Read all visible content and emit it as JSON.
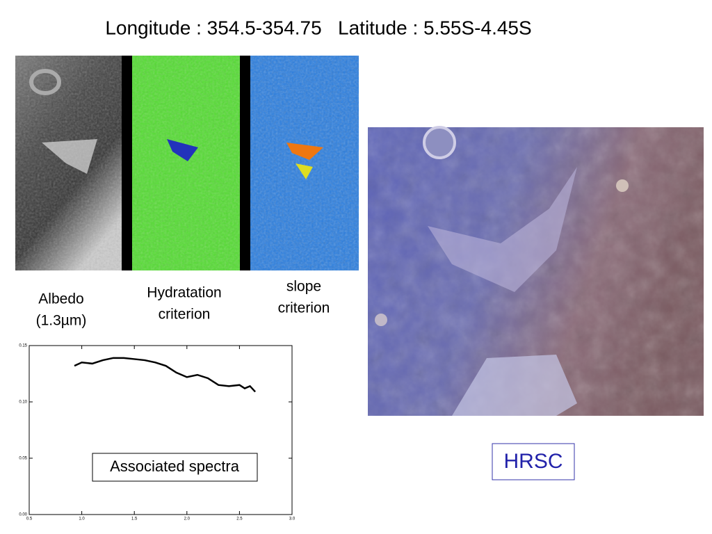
{
  "title": "Longitude : 354.5-354.75   Latitude : 5.55S-4.45S",
  "captions": {
    "albedo": [
      "Albedo",
      "(1.3µm)"
    ],
    "hydration": [
      "Hydratation",
      "criterion"
    ],
    "slope": [
      "slope",
      "criterion"
    ]
  },
  "spectra_label": "Associated spectra",
  "hrsc_label": "HRSC",
  "chart_data": {
    "type": "line",
    "x": [
      0.93,
      1.0,
      1.1,
      1.2,
      1.3,
      1.4,
      1.5,
      1.6,
      1.7,
      1.8,
      1.9,
      2.0,
      2.1,
      2.2,
      2.3,
      2.4,
      2.5,
      2.55,
      2.6,
      2.65
    ],
    "values": [
      0.132,
      0.135,
      0.134,
      0.137,
      0.139,
      0.139,
      0.138,
      0.137,
      0.135,
      0.132,
      0.126,
      0.122,
      0.124,
      0.121,
      0.115,
      0.114,
      0.115,
      0.112,
      0.114,
      0.109
    ],
    "color": "#000000",
    "xlim": [
      0.5,
      3.0
    ],
    "ylim": [
      0,
      0.15
    ],
    "xticks": [
      0.5,
      {
        "value": 1,
        "label": "1.0"
      },
      1.5,
      {
        "value": 2,
        "label": "2.0"
      },
      2.5,
      {
        "value": 3,
        "label": "3.0"
      }
    ],
    "yticks": [
      {
        "value": 0,
        "label": "0.00"
      },
      {
        "value": 0.05,
        "label": "0.05"
      },
      {
        "value": 0.1,
        "label": "0.10"
      },
      {
        "value": 0.15,
        "label": "0.15"
      }
    ]
  }
}
